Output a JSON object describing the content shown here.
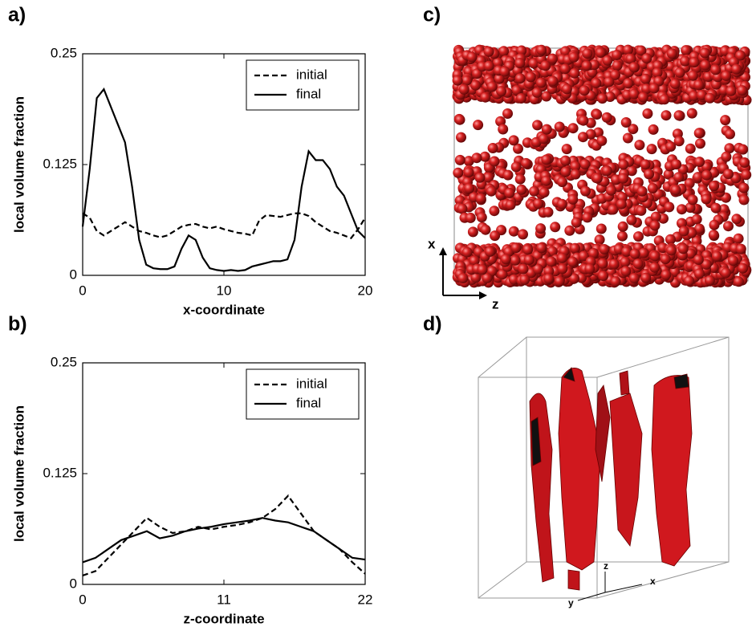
{
  "chart_data": [
    {
      "type": "line",
      "panel": "a)",
      "xlabel": "x-coordinate",
      "ylabel": "local volume fraction",
      "xlim": [
        0,
        20
      ],
      "xticks": [
        0,
        10,
        20
      ],
      "ylim": [
        0,
        0.25
      ],
      "yticks": [
        0,
        0.125,
        0.25
      ],
      "legend": "upper right",
      "grid": false,
      "x": [
        0,
        0.5,
        1,
        1.5,
        2,
        2.5,
        3,
        3.5,
        4,
        4.5,
        5,
        5.5,
        6,
        6.5,
        7,
        7.5,
        8,
        8.5,
        9,
        9.5,
        10,
        10.5,
        11,
        11.5,
        12,
        12.5,
        13,
        13.5,
        14,
        14.5,
        15,
        15.5,
        16,
        16.5,
        17,
        17.5,
        18,
        18.5,
        19,
        19.5,
        20
      ],
      "series": [
        {
          "name": "initial",
          "color": "#000000",
          "dash": "dashed",
          "values": [
            0.07,
            0.065,
            0.05,
            0.045,
            0.05,
            0.055,
            0.06,
            0.055,
            0.05,
            0.048,
            0.045,
            0.043,
            0.045,
            0.05,
            0.055,
            0.057,
            0.058,
            0.055,
            0.053,
            0.055,
            0.052,
            0.05,
            0.048,
            0.047,
            0.045,
            0.062,
            0.068,
            0.067,
            0.066,
            0.068,
            0.07,
            0.07,
            0.067,
            0.06,
            0.055,
            0.05,
            0.048,
            0.045,
            0.042,
            0.052,
            0.065
          ]
        },
        {
          "name": "final",
          "color": "#000000",
          "dash": "solid",
          "values": [
            0.055,
            0.12,
            0.2,
            0.21,
            0.19,
            0.17,
            0.15,
            0.1,
            0.04,
            0.012,
            0.008,
            0.007,
            0.007,
            0.01,
            0.03,
            0.045,
            0.04,
            0.02,
            0.008,
            0.006,
            0.005,
            0.006,
            0.005,
            0.006,
            0.01,
            0.012,
            0.014,
            0.016,
            0.016,
            0.018,
            0.04,
            0.1,
            0.14,
            0.13,
            0.13,
            0.12,
            0.1,
            0.09,
            0.07,
            0.05,
            0.042
          ]
        }
      ]
    },
    {
      "type": "line",
      "panel": "b)",
      "xlabel": "z-coordinate",
      "ylabel": "local volume fraction",
      "xlim": [
        0,
        22
      ],
      "xticks": [
        0,
        11,
        22
      ],
      "ylim": [
        0,
        0.25
      ],
      "yticks": [
        0,
        0.125,
        0.25
      ],
      "legend": "upper right",
      "grid": false,
      "x": [
        0,
        1,
        2,
        3,
        4,
        5,
        6,
        7,
        8,
        9,
        10,
        11,
        12,
        13,
        14,
        15,
        16,
        17,
        18,
        19,
        20,
        21,
        22
      ],
      "series": [
        {
          "name": "initial",
          "color": "#000000",
          "dash": "dashed",
          "values": [
            0.01,
            0.015,
            0.03,
            0.045,
            0.06,
            0.075,
            0.065,
            0.058,
            0.06,
            0.065,
            0.062,
            0.065,
            0.067,
            0.07,
            0.075,
            0.085,
            0.1,
            0.08,
            0.06,
            0.05,
            0.04,
            0.025,
            0.012
          ]
        },
        {
          "name": "final",
          "color": "#000000",
          "dash": "solid",
          "values": [
            0.025,
            0.03,
            0.04,
            0.05,
            0.055,
            0.06,
            0.052,
            0.055,
            0.06,
            0.063,
            0.065,
            0.068,
            0.07,
            0.072,
            0.075,
            0.072,
            0.07,
            0.065,
            0.06,
            0.05,
            0.04,
            0.03,
            0.028
          ]
        }
      ]
    }
  ],
  "images": [
    {
      "panel": "c)",
      "axes": [
        "x",
        "z"
      ]
    },
    {
      "panel": "d)",
      "axes": [
        "z",
        "y",
        "x"
      ]
    }
  ]
}
